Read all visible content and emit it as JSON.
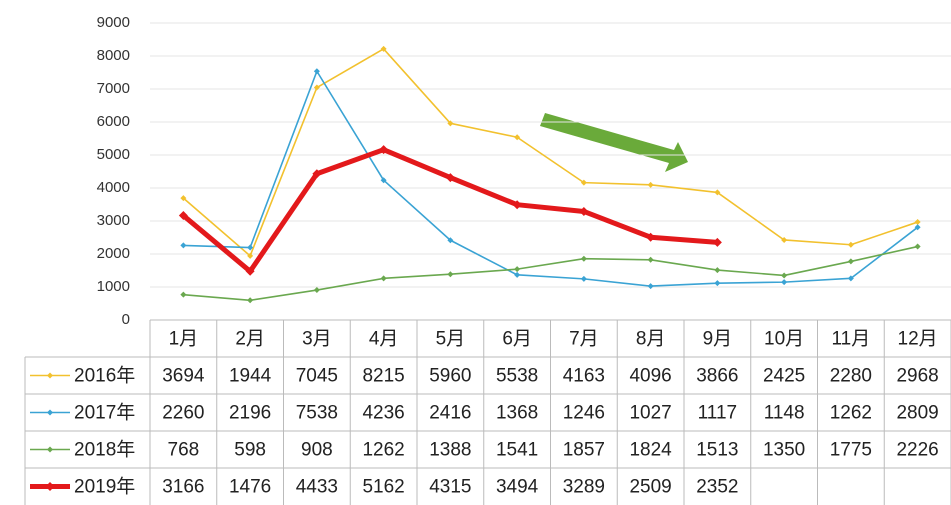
{
  "chart_data": {
    "type": "line",
    "categories": [
      "1月",
      "2月",
      "3月",
      "4月",
      "5月",
      "6月",
      "7月",
      "8月",
      "9月",
      "10月",
      "11月",
      "12月"
    ],
    "series": [
      {
        "name": "2016年",
        "color": "#f2c12e",
        "values": [
          3694,
          1944,
          7045,
          8215,
          5960,
          5538,
          4163,
          4096,
          3866,
          2425,
          2280,
          2968
        ]
      },
      {
        "name": "2017年",
        "color": "#3aa3d4",
        "values": [
          2260,
          2196,
          7538,
          4236,
          2416,
          1368,
          1246,
          1027,
          1117,
          1148,
          1262,
          2809
        ]
      },
      {
        "name": "2018年",
        "color": "#6aa84f",
        "values": [
          768,
          598,
          908,
          1262,
          1388,
          1541,
          1857,
          1824,
          1513,
          1350,
          1775,
          2226
        ]
      },
      {
        "name": "2019年",
        "color": "#e3191b",
        "values": [
          3166,
          1476,
          4433,
          5162,
          4315,
          3494,
          3289,
          2509,
          2352,
          null,
          null,
          null
        ]
      }
    ],
    "ylim": [
      0,
      9000
    ],
    "yticks": [
      0,
      1000,
      2000,
      3000,
      4000,
      5000,
      6000,
      7000,
      8000,
      9000
    ],
    "grid": true
  }
}
